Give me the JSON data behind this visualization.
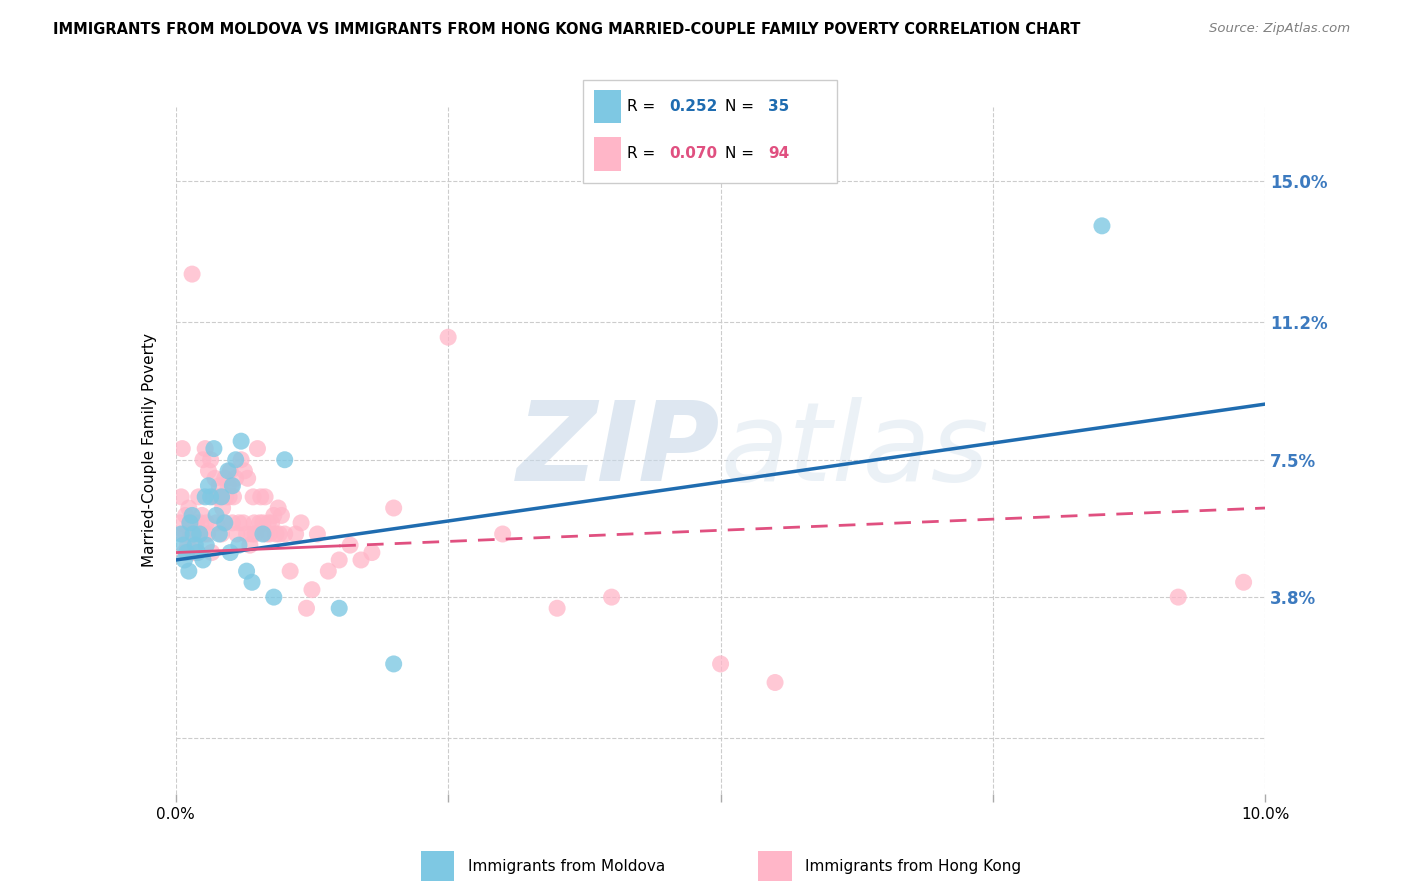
{
  "title": "IMMIGRANTS FROM MOLDOVA VS IMMIGRANTS FROM HONG KONG MARRIED-COUPLE FAMILY POVERTY CORRELATION CHART",
  "source": "Source: ZipAtlas.com",
  "ylabel": "Married-Couple Family Poverty",
  "xlim": [
    0.0,
    10.0
  ],
  "ylim": [
    -1.5,
    17.0
  ],
  "yticks": [
    0.0,
    3.8,
    7.5,
    11.2,
    15.0
  ],
  "ytick_labels": [
    "",
    "3.8%",
    "7.5%",
    "11.2%",
    "15.0%"
  ],
  "moldova_R": 0.252,
  "moldova_N": 35,
  "hk_R": 0.07,
  "hk_N": 94,
  "moldova_color": "#7ec8e3",
  "hk_color": "#ffb6c8",
  "moldova_line_color": "#1f6cb0",
  "hk_line_color": "#e05080",
  "watermark_zip": "ZIP",
  "watermark_atlas": "atlas",
  "moldova_line_start_y": 4.8,
  "moldova_line_end_y": 9.0,
  "hk_solid_end_x": 1.5,
  "hk_line_start_y": 5.0,
  "hk_line_end_y": 6.2,
  "moldova_x": [
    0.05,
    0.07,
    0.08,
    0.1,
    0.12,
    0.13,
    0.15,
    0.16,
    0.18,
    0.2,
    0.22,
    0.25,
    0.27,
    0.28,
    0.3,
    0.32,
    0.35,
    0.37,
    0.4,
    0.42,
    0.45,
    0.48,
    0.5,
    0.52,
    0.55,
    0.58,
    0.6,
    0.65,
    0.7,
    0.8,
    0.9,
    1.0,
    1.5,
    2.0,
    8.5
  ],
  "moldova_y": [
    5.5,
    5.2,
    4.8,
    5.0,
    4.5,
    5.8,
    6.0,
    5.5,
    5.2,
    5.0,
    5.5,
    4.8,
    6.5,
    5.2,
    6.8,
    6.5,
    7.8,
    6.0,
    5.5,
    6.5,
    5.8,
    7.2,
    5.0,
    6.8,
    7.5,
    5.2,
    8.0,
    4.5,
    4.2,
    5.5,
    3.8,
    7.5,
    3.5,
    2.0,
    13.8
  ],
  "hk_x": [
    0.04,
    0.05,
    0.06,
    0.07,
    0.08,
    0.09,
    0.1,
    0.11,
    0.12,
    0.13,
    0.14,
    0.15,
    0.16,
    0.17,
    0.18,
    0.19,
    0.2,
    0.21,
    0.22,
    0.23,
    0.24,
    0.25,
    0.26,
    0.27,
    0.28,
    0.29,
    0.3,
    0.32,
    0.33,
    0.35,
    0.36,
    0.37,
    0.38,
    0.4,
    0.41,
    0.42,
    0.43,
    0.44,
    0.45,
    0.46,
    0.48,
    0.49,
    0.5,
    0.51,
    0.52,
    0.53,
    0.55,
    0.56,
    0.58,
    0.6,
    0.62,
    0.63,
    0.65,
    0.66,
    0.68,
    0.7,
    0.71,
    0.72,
    0.73,
    0.75,
    0.77,
    0.78,
    0.8,
    0.82,
    0.83,
    0.85,
    0.86,
    0.88,
    0.9,
    0.92,
    0.94,
    0.95,
    0.97,
    1.0,
    1.05,
    1.1,
    1.15,
    1.2,
    1.25,
    1.3,
    1.4,
    1.5,
    1.6,
    1.7,
    1.8,
    2.0,
    2.5,
    3.0,
    3.5,
    4.0,
    5.0,
    5.5,
    9.2,
    9.8
  ],
  "hk_y": [
    5.8,
    6.5,
    7.8,
    5.5,
    5.0,
    6.0,
    5.5,
    5.2,
    6.2,
    5.8,
    5.5,
    12.5,
    5.0,
    5.2,
    5.5,
    5.8,
    5.0,
    6.5,
    5.5,
    5.8,
    6.0,
    7.5,
    5.5,
    7.8,
    5.8,
    5.5,
    7.2,
    7.5,
    5.0,
    6.5,
    7.0,
    5.8,
    6.5,
    6.8,
    6.5,
    5.5,
    6.2,
    5.8,
    7.0,
    6.5,
    6.8,
    6.5,
    7.2,
    6.8,
    5.8,
    6.5,
    7.0,
    5.5,
    5.8,
    7.5,
    5.8,
    7.2,
    5.5,
    7.0,
    5.2,
    5.5,
    6.5,
    5.8,
    5.5,
    7.8,
    5.8,
    6.5,
    5.8,
    6.5,
    5.5,
    5.8,
    5.5,
    5.8,
    6.0,
    5.5,
    6.2,
    5.5,
    6.0,
    5.5,
    4.5,
    5.5,
    5.8,
    3.5,
    4.0,
    5.5,
    4.5,
    4.8,
    5.2,
    4.8,
    5.0,
    6.2,
    10.8,
    5.5,
    3.5,
    3.8,
    2.0,
    1.5,
    3.8,
    4.2
  ]
}
